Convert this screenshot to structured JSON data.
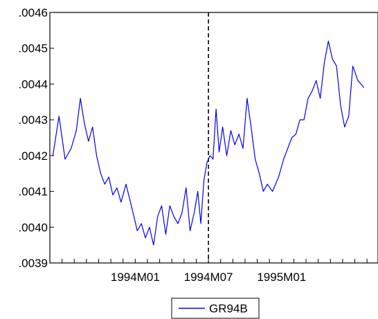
{
  "chart_data": {
    "type": "line",
    "title": "",
    "xlabel": "",
    "ylabel": "",
    "ylim": [
      0.0039,
      0.0046
    ],
    "yticks": [
      0.0039,
      0.004,
      0.0041,
      0.0042,
      0.0043,
      0.0044,
      0.0045,
      0.0046
    ],
    "ytick_labels": [
      ".0039",
      ".0040",
      ".0041",
      ".0042",
      ".0043",
      ".0044",
      ".0045",
      ".0046"
    ],
    "xlim": [
      "1993M06",
      "1995M08"
    ],
    "xticks": [
      "1994M01",
      "1994M07",
      "1995M01"
    ],
    "xtick_labels": [
      "1994M01",
      "1994M07",
      "1995M01"
    ],
    "vertical_line": {
      "x": "1994M07",
      "style": "dashed"
    },
    "grid": false,
    "legend": {
      "placement": "bottom-center",
      "entries": [
        "GR94B"
      ]
    },
    "series": [
      {
        "name": "GR94B",
        "color": "#0000ee",
        "points": [
          [
            "1993M06",
            0.0042
          ],
          [
            "1993M06",
            0.00431
          ],
          [
            "1993M07",
            0.00419
          ],
          [
            "1993M07",
            0.00422
          ],
          [
            "1993M08",
            0.00427
          ],
          [
            "1993M08",
            0.00436
          ],
          [
            "1993M08",
            0.00429
          ],
          [
            "1993M09",
            0.00424
          ],
          [
            "1993M09",
            0.00428
          ],
          [
            "1993M09",
            0.0042
          ],
          [
            "1993M10",
            0.00415
          ],
          [
            "1993M10",
            0.00412
          ],
          [
            "1993M10",
            0.00414
          ],
          [
            "1993M11",
            0.00409
          ],
          [
            "1993M11",
            0.00411
          ],
          [
            "1993M11",
            0.00407
          ],
          [
            "1993M12",
            0.00412
          ],
          [
            "1993M12",
            0.00405
          ],
          [
            "1994M01",
            0.00399
          ],
          [
            "1994M01",
            0.00401
          ],
          [
            "1994M01",
            0.00397
          ],
          [
            "1994M02",
            0.004
          ],
          [
            "1994M02",
            0.00395
          ],
          [
            "1994M02",
            0.00403
          ],
          [
            "1994M03",
            0.00406
          ],
          [
            "1994M03",
            0.00398
          ],
          [
            "1994M03",
            0.00406
          ],
          [
            "1994M04",
            0.00403
          ],
          [
            "1994M04",
            0.00401
          ],
          [
            "1994M04",
            0.00404
          ],
          [
            "1994M05",
            0.00411
          ],
          [
            "1994M05",
            0.00399
          ],
          [
            "1994M05",
            0.00404
          ],
          [
            "1994M06",
            0.0041
          ],
          [
            "1994M06",
            0.00401
          ],
          [
            "1994M06",
            0.00413
          ],
          [
            "1994M06",
            0.00418
          ],
          [
            "1994M07",
            0.0042
          ],
          [
            "1994M07",
            0.00419
          ],
          [
            "1994M07",
            0.00433
          ],
          [
            "1994M07",
            0.00421
          ],
          [
            "1994M08",
            0.00428
          ],
          [
            "1994M08",
            0.0042
          ],
          [
            "1994M08",
            0.00427
          ],
          [
            "1994M09",
            0.00423
          ],
          [
            "1994M09",
            0.00426
          ],
          [
            "1994M09",
            0.00422
          ],
          [
            "1994M10",
            0.00436
          ],
          [
            "1994M10",
            0.00428
          ],
          [
            "1994M10",
            0.00419
          ],
          [
            "1994M11",
            0.00415
          ],
          [
            "1994M11",
            0.0041
          ],
          [
            "1994M11",
            0.00412
          ],
          [
            "1994M12",
            0.0041
          ],
          [
            "1994M12",
            0.00414
          ],
          [
            "1995M01",
            0.00419
          ],
          [
            "1995M01",
            0.00422
          ],
          [
            "1995M01",
            0.00425
          ],
          [
            "1995M02",
            0.00426
          ],
          [
            "1995M02",
            0.0043
          ],
          [
            "1995M02",
            0.0043
          ],
          [
            "1995M03",
            0.00436
          ],
          [
            "1995M03",
            0.00438
          ],
          [
            "1995M03",
            0.00441
          ],
          [
            "1995M04",
            0.00436
          ],
          [
            "1995M04",
            0.00446
          ],
          [
            "1995M04",
            0.00452
          ],
          [
            "1995M05",
            0.00447
          ],
          [
            "1995M05",
            0.00445
          ],
          [
            "1995M05",
            0.00434
          ],
          [
            "1995M06",
            0.00428
          ],
          [
            "1995M06",
            0.00431
          ],
          [
            "1995M06",
            0.00445
          ],
          [
            "1995M07",
            0.00441
          ],
          [
            "1995M07",
            0.00439
          ]
        ]
      }
    ]
  }
}
